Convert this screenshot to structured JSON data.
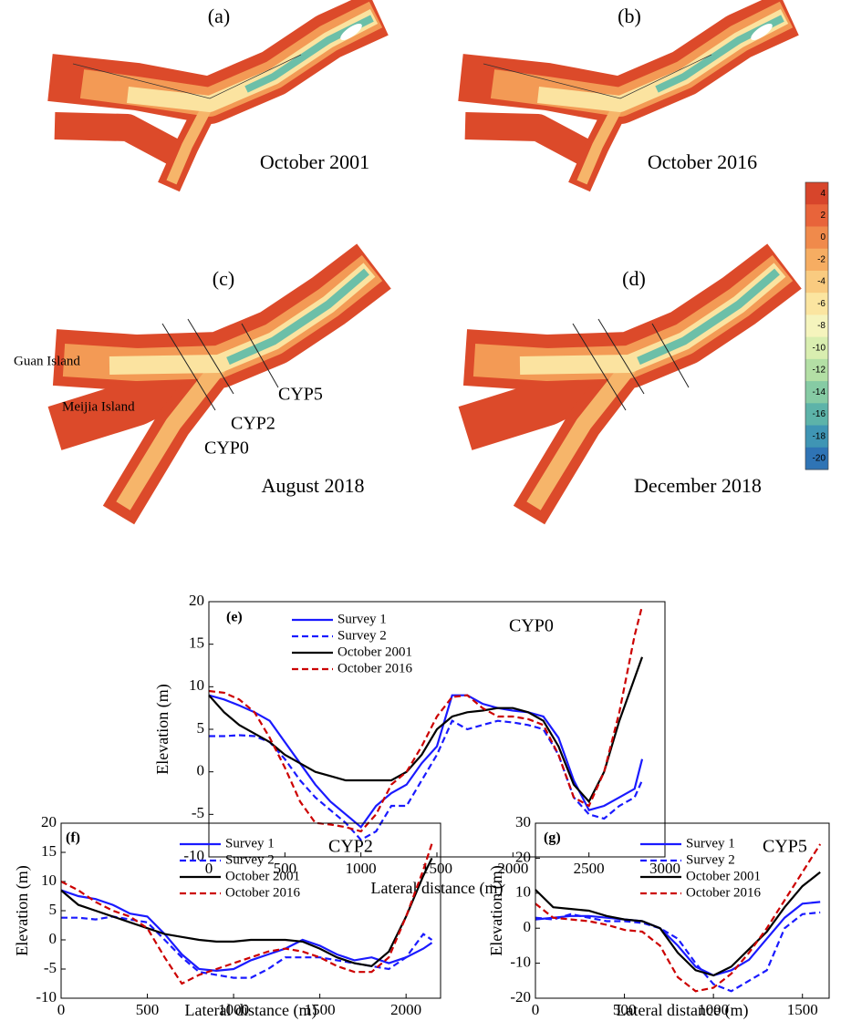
{
  "figure": {
    "panels": [
      {
        "label": "(a)",
        "caption": "October 2001"
      },
      {
        "label": "(b)",
        "caption": "October 2016"
      },
      {
        "label": "(c)",
        "caption": "August 2018"
      },
      {
        "label": "(d)",
        "caption": "December 2018"
      }
    ],
    "map_labels": [
      {
        "text": "Guan Island",
        "color": "#1a1aff"
      },
      {
        "text": "Meijia Island",
        "color": "#1a1aff"
      },
      {
        "text": "CYP5",
        "color": "#000000"
      },
      {
        "text": "CYP2",
        "color": "#000000"
      },
      {
        "text": "CYP0",
        "color": "#000000"
      }
    ],
    "colorbar": {
      "ticks": [
        4,
        2,
        0,
        -2,
        -4,
        -6,
        -8,
        -10,
        -12,
        -14,
        -16,
        -18,
        -20
      ],
      "colors": [
        "#d7452b",
        "#e8643a",
        "#f08a4b",
        "#f6ad62",
        "#f9cb80",
        "#fbe5a0",
        "#f5f4bd",
        "#d9eeb0",
        "#b3dfa5",
        "#86cba4",
        "#5db3a9",
        "#3f95b4",
        "#2f74b5"
      ]
    }
  },
  "chart_data": [
    {
      "type": "line",
      "annotations": [
        {
          "text": "(e)",
          "color": "#000000"
        },
        {
          "text": "CYP0",
          "color": "#8b1a1a"
        }
      ],
      "xlabel": "Lateral distance (m)",
      "ylabel": "Elevation (m)",
      "xlim": [
        0,
        3000
      ],
      "ylim": [
        -10,
        20
      ],
      "xticks": [
        0,
        500,
        1000,
        1500,
        2000,
        2500,
        3000
      ],
      "yticks": [
        -10,
        -5,
        0,
        5,
        10,
        15,
        20
      ],
      "legend": true,
      "x": [
        0,
        100,
        200,
        300,
        400,
        500,
        600,
        700,
        800,
        900,
        1000,
        1100,
        1200,
        1300,
        1400,
        1500,
        1600,
        1700,
        1800,
        1900,
        2000,
        2100,
        2200,
        2300,
        2400,
        2500,
        2600,
        2700,
        2800,
        2850
      ],
      "series": [
        {
          "name": "Survey 1",
          "color": "#1a1aff",
          "linestyle": "solid",
          "values": [
            9,
            8.5,
            7.8,
            7,
            6,
            3.5,
            1,
            -1.5,
            -3.5,
            -5,
            -6.5,
            -4,
            -2.5,
            -1.5,
            1,
            3,
            9,
            9,
            8,
            7.5,
            7.2,
            7,
            6.5,
            4,
            -1,
            -4.5,
            -4,
            -3,
            -2,
            1.5
          ]
        },
        {
          "name": "Survey 2",
          "color": "#1a1aff",
          "linestyle": "dashed",
          "values": [
            4.2,
            4.2,
            4.3,
            4.2,
            3.5,
            1.5,
            -1,
            -3,
            -4.5,
            -6,
            -8,
            -7,
            -4,
            -4,
            -1,
            2,
            6,
            5,
            5.5,
            6,
            5.8,
            5.5,
            5,
            2,
            -3,
            -5,
            -5.5,
            -4,
            -3,
            -1
          ]
        },
        {
          "name": "October 2001",
          "color": "#000000",
          "linestyle": "solid",
          "values": [
            9,
            7,
            5.5,
            4.5,
            3.5,
            2,
            1,
            0,
            -0.5,
            -1,
            -1,
            -1,
            -1,
            0,
            2,
            5,
            6.5,
            7,
            7.2,
            7.5,
            7.5,
            7,
            6,
            3,
            -1.5,
            -3.5,
            0,
            6,
            11,
            13.5
          ]
        },
        {
          "name": "October 2016",
          "color": "#cc0000",
          "linestyle": "dashed",
          "values": [
            9.5,
            9.3,
            8.5,
            7,
            4,
            0.5,
            -3.5,
            -6,
            -6.2,
            -6.5,
            -7,
            -5,
            -1.5,
            0,
            3,
            6.5,
            8.8,
            9,
            7.5,
            6.5,
            6.5,
            6.2,
            5.5,
            2,
            -3,
            -4,
            0,
            7,
            16,
            19.5
          ]
        }
      ]
    },
    {
      "type": "line",
      "annotations": [
        {
          "text": "(f)",
          "color": "#000000"
        },
        {
          "text": "CYP2",
          "color": "#8b1a1a"
        }
      ],
      "xlabel": "Lateral distance (m)",
      "ylabel": "Elevation (m)",
      "xlim": [
        0,
        2200
      ],
      "ylim": [
        -10,
        20
      ],
      "xticks": [
        0,
        500,
        1000,
        1500,
        2000
      ],
      "yticks": [
        -10,
        -5,
        0,
        5,
        10,
        15,
        20
      ],
      "legend": true,
      "x": [
        0,
        100,
        200,
        300,
        400,
        500,
        600,
        700,
        800,
        900,
        1000,
        1100,
        1200,
        1300,
        1400,
        1500,
        1600,
        1700,
        1800,
        1900,
        2000,
        2100,
        2150
      ],
      "series": [
        {
          "name": "Survey 1",
          "color": "#1a1aff",
          "linestyle": "solid",
          "values": [
            8.5,
            7.5,
            7,
            6,
            4.5,
            4,
            1,
            -2.5,
            -5,
            -5.3,
            -5,
            -3.5,
            -2.5,
            -1.5,
            0,
            -1,
            -2.5,
            -3.5,
            -3,
            -4,
            -3,
            -1.5,
            -0.5
          ]
        },
        {
          "name": "Survey 2",
          "color": "#1a1aff",
          "linestyle": "dashed",
          "values": [
            3.8,
            3.8,
            3.5,
            4,
            3.5,
            3,
            0,
            -3,
            -5.5,
            -6,
            -6.5,
            -6.5,
            -5,
            -3,
            -3,
            -3,
            -3.5,
            -4,
            -4.5,
            -5,
            -3,
            1,
            0
          ]
        },
        {
          "name": "October 2001",
          "color": "#000000",
          "linestyle": "solid",
          "values": [
            8.5,
            6,
            5,
            4,
            3,
            2,
            1,
            0.5,
            0,
            -0.3,
            -0.3,
            0,
            0,
            0,
            -0.3,
            -1.5,
            -3,
            -4,
            -4.5,
            -2,
            4,
            11,
            14
          ]
        },
        {
          "name": "October 2016",
          "color": "#cc0000",
          "linestyle": "dashed",
          "values": [
            10,
            8.5,
            6.5,
            5,
            4,
            2,
            -3,
            -7.5,
            -6,
            -5,
            -4,
            -3,
            -2,
            -1.5,
            -2,
            -3,
            -4.5,
            -5.5,
            -5.5,
            -3,
            4,
            12,
            16.5
          ]
        }
      ]
    },
    {
      "type": "line",
      "annotations": [
        {
          "text": "(g)",
          "color": "#000000"
        },
        {
          "text": "CYP5",
          "color": "#8b1a1a"
        }
      ],
      "xlabel": "Lateral distance (m)",
      "ylabel": "Elevation (m)",
      "xlim": [
        0,
        1650
      ],
      "ylim": [
        -20,
        30
      ],
      "xticks": [
        0,
        500,
        1000,
        1500
      ],
      "yticks": [
        -20,
        -10,
        0,
        10,
        20,
        30
      ],
      "legend": true,
      "x": [
        0,
        100,
        200,
        300,
        400,
        500,
        600,
        700,
        800,
        900,
        1000,
        1100,
        1200,
        1300,
        1400,
        1500,
        1600
      ],
      "series": [
        {
          "name": "Survey 1",
          "color": "#1a1aff",
          "linestyle": "solid",
          "values": [
            2.5,
            3,
            3.5,
            3.5,
            3,
            2.5,
            2,
            0,
            -5,
            -11,
            -13.5,
            -12,
            -9,
            -3,
            3,
            7,
            7.5
          ]
        },
        {
          "name": "Survey 2",
          "color": "#1a1aff",
          "linestyle": "dashed",
          "values": [
            3,
            2.5,
            4,
            3,
            2,
            2,
            1.5,
            0,
            -3,
            -10,
            -16,
            -18,
            -15,
            -12,
            0,
            4,
            4.5
          ]
        },
        {
          "name": "October 2001",
          "color": "#000000",
          "linestyle": "solid",
          "values": [
            11,
            6,
            5.5,
            5,
            3.5,
            2.5,
            2,
            0,
            -7,
            -12,
            -13.5,
            -11,
            -6,
            -1,
            6,
            12,
            16
          ]
        },
        {
          "name": "October 2016",
          "color": "#cc0000",
          "linestyle": "dashed",
          "values": [
            7,
            3,
            2.5,
            2,
            1,
            -0.5,
            -1,
            -5,
            -14,
            -18,
            -17,
            -13,
            -7,
            0,
            8,
            16,
            24
          ]
        }
      ]
    }
  ]
}
